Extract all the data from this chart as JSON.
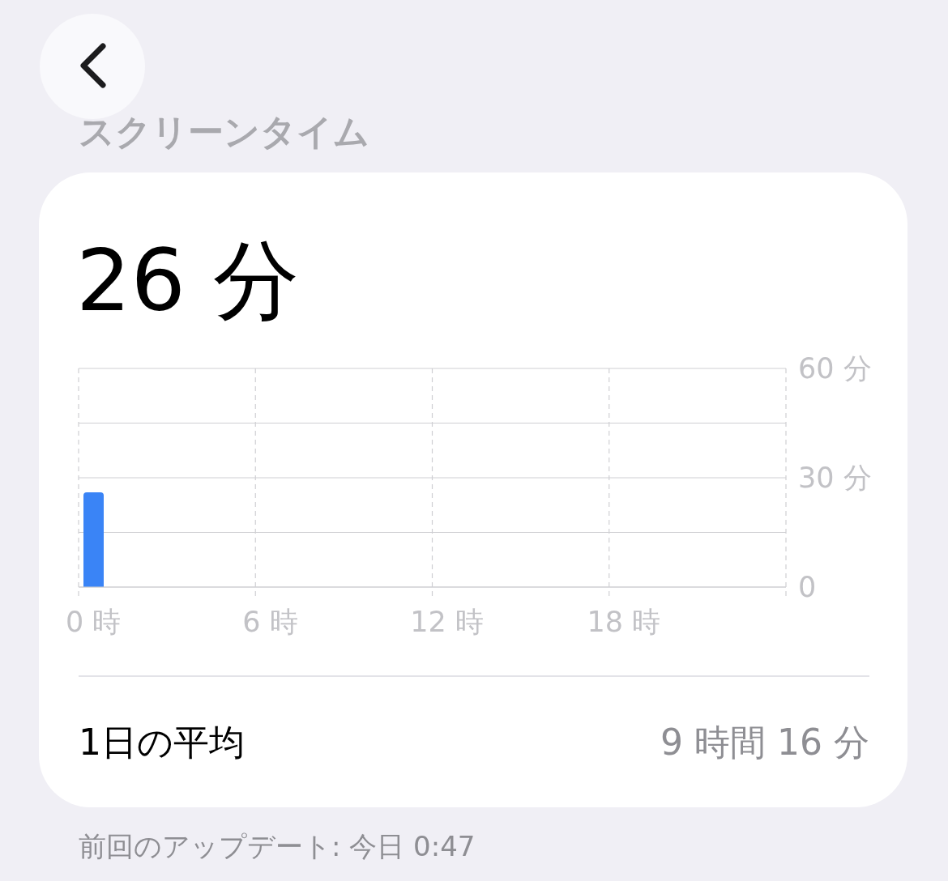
{
  "chart_data": {
    "type": "bar",
    "title": "スクリーンタイム",
    "subtitle": "26 分",
    "categories": [
      "0 時",
      null,
      null,
      null,
      null,
      null,
      "6 時",
      null,
      null,
      null,
      null,
      null,
      "12 時",
      null,
      null,
      null,
      null,
      null,
      "18 時",
      null,
      null,
      null,
      null,
      null
    ],
    "values": [
      26,
      0,
      0,
      0,
      0,
      0,
      0,
      0,
      0,
      0,
      0,
      0,
      0,
      0,
      0,
      0,
      0,
      0,
      0,
      0,
      0,
      0,
      0,
      0
    ],
    "color": "#3a84f6",
    "ylim": [
      0,
      60
    ],
    "yticks": [
      0,
      {
        "value": 15,
        "label": null
      },
      {
        "value": 30,
        "label": "30 分"
      },
      {
        "value": 45,
        "label": null
      },
      {
        "value": 60,
        "label": "60 分"
      }
    ],
    "grid": true,
    "annotations": [
      "1日の平均",
      "9 時間 16 分",
      "前回のアップデート: 今日 0:47"
    ]
  }
}
